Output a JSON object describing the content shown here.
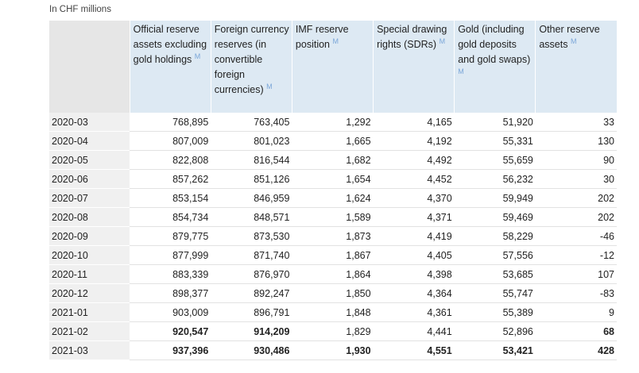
{
  "caption": "In CHF millions",
  "table": {
    "header": [
      {
        "text": "Official reserve assets excluding gold holdings",
        "note": "M"
      },
      {
        "text": "Foreign currency reserves (in convertible foreign currencies)",
        "note": "M"
      },
      {
        "text": "IMF reserve position",
        "note": "M"
      },
      {
        "text": "Special drawing rights (SDRs)",
        "note": "M"
      },
      {
        "text": "Gold (including gold deposits and gold swaps)",
        "note": "M"
      },
      {
        "text": "Other reserve assets",
        "note": "M"
      }
    ],
    "rows": [
      [
        "2020-03",
        "768,895",
        "763,405",
        "1,292",
        "4,165",
        "51,920",
        "33"
      ],
      [
        "2020-04",
        "807,009",
        "801,023",
        "1,665",
        "4,192",
        "55,331",
        "130"
      ],
      [
        "2020-05",
        "822,808",
        "816,544",
        "1,682",
        "4,492",
        "55,659",
        "90"
      ],
      [
        "2020-06",
        "857,262",
        "851,126",
        "1,654",
        "4,452",
        "56,232",
        "30"
      ],
      [
        "2020-07",
        "853,154",
        "846,959",
        "1,624",
        "4,370",
        "59,949",
        "202"
      ],
      [
        "2020-08",
        "854,734",
        "848,571",
        "1,589",
        "4,371",
        "59,469",
        "202"
      ],
      [
        "2020-09",
        "879,775",
        "873,530",
        "1,873",
        "4,419",
        "58,229",
        "-46"
      ],
      [
        "2020-10",
        "877,999",
        "871,740",
        "1,867",
        "4,405",
        "57,556",
        "-12"
      ],
      [
        "2020-11",
        "883,339",
        "876,970",
        "1,864",
        "4,398",
        "53,685",
        "107"
      ],
      [
        "2020-12",
        "898,377",
        "892,247",
        "1,850",
        "4,364",
        "55,747",
        "-83"
      ],
      [
        "2021-01",
        "903,009",
        "896,791",
        "1,848",
        "4,361",
        "55,389",
        "9"
      ],
      [
        "2021-02",
        "920,547",
        "914,209",
        "1,829",
        "4,441",
        "52,896",
        "68"
      ],
      [
        "2021-03",
        "937,396",
        "930,486",
        "1,930",
        "4,551",
        "53,421",
        "428"
      ]
    ]
  }
}
